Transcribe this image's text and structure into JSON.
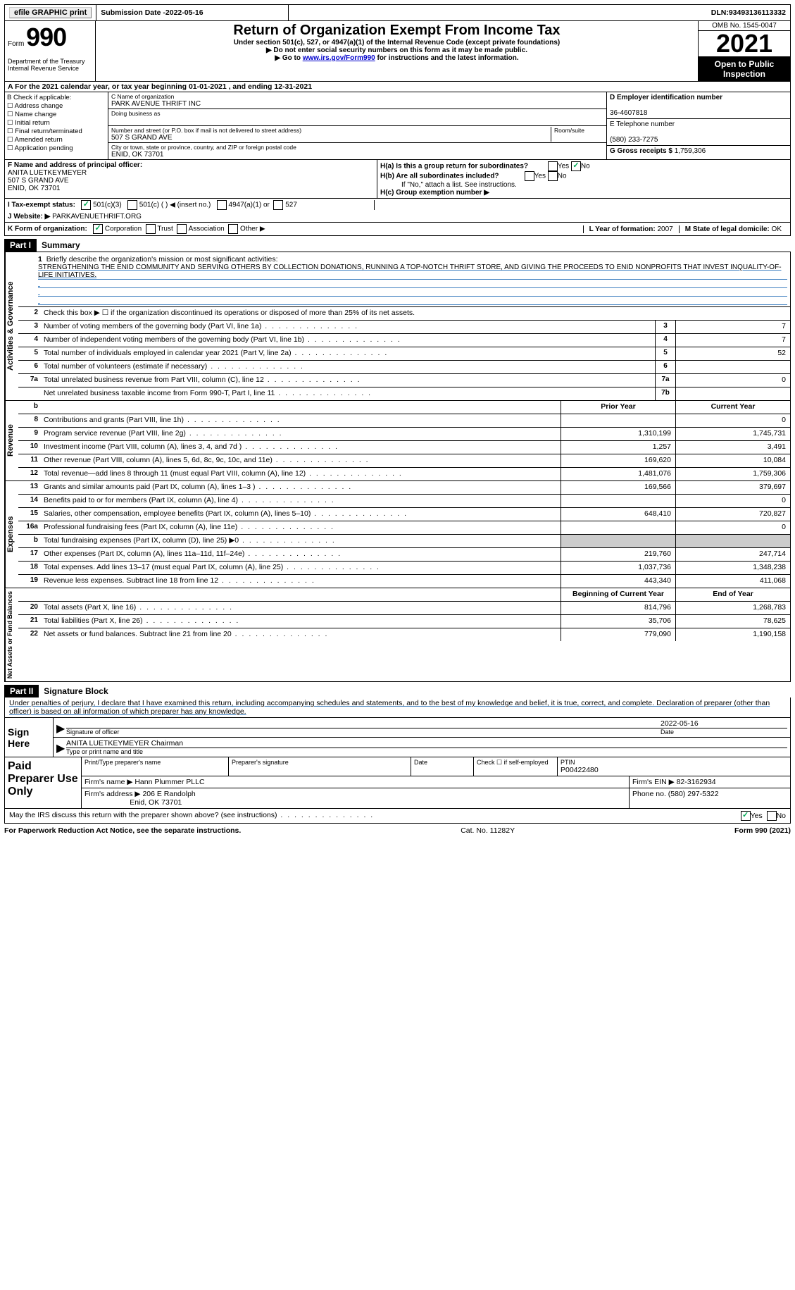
{
  "topbar": {
    "efile": "efile GRAPHIC print",
    "submission_label": "Submission Date - ",
    "submission_date": "2022-05-16",
    "dln_label": "DLN: ",
    "dln": "93493136113332"
  },
  "header": {
    "form_word": "Form",
    "form_num": "990",
    "dept": "Department of the Treasury Internal Revenue Service",
    "title": "Return of Organization Exempt From Income Tax",
    "subtitle": "Under section 501(c), 527, or 4947(a)(1) of the Internal Revenue Code (except private foundations)",
    "no_ssn": "▶ Do not enter social security numbers on this form as it may be made public.",
    "goto_pre": "▶ Go to ",
    "goto_link": "www.irs.gov/Form990",
    "goto_post": " for instructions and the latest information.",
    "omb": "OMB No. 1545-0047",
    "year": "2021",
    "open": "Open to Public Inspection"
  },
  "rowA": "A For the 2021 calendar year, or tax year beginning 01-01-2021   , and ending 12-31-2021",
  "colB": {
    "label": "B Check if applicable:",
    "address": "Address change",
    "name": "Name change",
    "initial": "Initial return",
    "final": "Final return/terminated",
    "amended": "Amended return",
    "app": "Application pending"
  },
  "colC": {
    "name_label": "C Name of organization",
    "name": "PARK AVENUE THRIFT INC",
    "dba_label": "Doing business as",
    "dba": "",
    "street_label": "Number and street (or P.O. box if mail is not delivered to street address)",
    "street": "507 S GRAND AVE",
    "room_label": "Room/suite",
    "city_label": "City or town, state or province, country, and ZIP or foreign postal code",
    "city": "ENID, OK  73701"
  },
  "colD": {
    "ein_label": "D Employer identification number",
    "ein": "36-4607818",
    "phone_label": "E Telephone number",
    "phone": "(580) 233-7275",
    "gross_label": "G Gross receipts $ ",
    "gross": "1,759,306"
  },
  "rowF": {
    "label": "F Name and address of principal officer:",
    "name": "ANITA LUETKEYMEYER",
    "addr1": "507 S GRAND AVE",
    "addr2": "ENID, OK  73701",
    "ha_label": "H(a)  Is this a group return for subordinates?",
    "hb_label": "H(b)  Are all subordinates included?",
    "hb_note": "If \"No,\" attach a list. See instructions.",
    "hc_label": "H(c)  Group exemption number ▶",
    "yes": "Yes",
    "no": "No"
  },
  "rowI": {
    "label": "I   Tax-exempt status:",
    "opt1": "501(c)(3)",
    "opt2": "501(c) (  ) ◀ (insert no.)",
    "opt3": "4947(a)(1) or",
    "opt4": "527"
  },
  "rowJ": {
    "label": "J   Website: ▶",
    "value": "PARKAVENUETHRIFT.ORG"
  },
  "rowK": {
    "label": "K Form of organization:",
    "corp": "Corporation",
    "trust": "Trust",
    "assoc": "Association",
    "other": "Other ▶",
    "l_label": "L Year of formation: ",
    "l_val": "2007",
    "m_label": "M State of legal domicile: ",
    "m_val": "OK"
  },
  "part1": {
    "header": "Part I",
    "title": "Summary"
  },
  "side_labels": {
    "activities": "Activities & Governance",
    "revenue": "Revenue",
    "expenses": "Expenses",
    "net": "Net Assets or Fund Balances"
  },
  "summary": {
    "line1_label": "Briefly describe the organization's mission or most significant activities:",
    "mission": "STRENGTHENING THE ENID COMMUNITY AND SERVING OTHERS BY COLLECTION DONATIONS, RUNNING A TOP-NOTCH THRIFT STORE, AND GIVING THE PROCEEDS TO ENID NONPROFITS THAT INVEST INQUALITY-OF-LIFE INITIATIVES.",
    "line2": "Check this box ▶ ☐  if the organization discontinued its operations or disposed of more than 25% of its net assets.",
    "lines": [
      {
        "n": "3",
        "d": "Number of voting members of the governing body (Part VI, line 1a)",
        "b": "3",
        "v": "7"
      },
      {
        "n": "4",
        "d": "Number of independent voting members of the governing body (Part VI, line 1b)",
        "b": "4",
        "v": "7"
      },
      {
        "n": "5",
        "d": "Total number of individuals employed in calendar year 2021 (Part V, line 2a)",
        "b": "5",
        "v": "52"
      },
      {
        "n": "6",
        "d": "Total number of volunteers (estimate if necessary)",
        "b": "6",
        "v": ""
      },
      {
        "n": "7a",
        "d": "Total unrelated business revenue from Part VIII, column (C), line 12",
        "b": "7a",
        "v": "0"
      },
      {
        "n": "",
        "d": "Net unrelated business taxable income from Form 990-T, Part I, line 11",
        "b": "7b",
        "v": ""
      }
    ],
    "col_prior": "Prior Year",
    "col_current": "Current Year",
    "revenue_lines": [
      {
        "n": "8",
        "d": "Contributions and grants (Part VIII, line 1h)",
        "p": "",
        "c": "0"
      },
      {
        "n": "9",
        "d": "Program service revenue (Part VIII, line 2g)",
        "p": "1,310,199",
        "c": "1,745,731"
      },
      {
        "n": "10",
        "d": "Investment income (Part VIII, column (A), lines 3, 4, and 7d )",
        "p": "1,257",
        "c": "3,491"
      },
      {
        "n": "11",
        "d": "Other revenue (Part VIII, column (A), lines 5, 6d, 8c, 9c, 10c, and 11e)",
        "p": "169,620",
        "c": "10,084"
      },
      {
        "n": "12",
        "d": "Total revenue—add lines 8 through 11 (must equal Part VIII, column (A), line 12)",
        "p": "1,481,076",
        "c": "1,759,306"
      }
    ],
    "expense_lines": [
      {
        "n": "13",
        "d": "Grants and similar amounts paid (Part IX, column (A), lines 1–3 )",
        "p": "169,566",
        "c": "379,697"
      },
      {
        "n": "14",
        "d": "Benefits paid to or for members (Part IX, column (A), line 4)",
        "p": "",
        "c": "0"
      },
      {
        "n": "15",
        "d": "Salaries, other compensation, employee benefits (Part IX, column (A), lines 5–10)",
        "p": "648,410",
        "c": "720,827"
      },
      {
        "n": "16a",
        "d": "Professional fundraising fees (Part IX, column (A), line 11e)",
        "p": "",
        "c": "0"
      },
      {
        "n": "b",
        "d": "Total fundraising expenses (Part IX, column (D), line 25) ▶0",
        "p": "shade",
        "c": "shade"
      },
      {
        "n": "17",
        "d": "Other expenses (Part IX, column (A), lines 11a–11d, 11f–24e)",
        "p": "219,760",
        "c": "247,714"
      },
      {
        "n": "18",
        "d": "Total expenses. Add lines 13–17 (must equal Part IX, column (A), line 25)",
        "p": "1,037,736",
        "c": "1,348,238"
      },
      {
        "n": "19",
        "d": "Revenue less expenses. Subtract line 18 from line 12",
        "p": "443,340",
        "c": "411,068"
      }
    ],
    "col_begin": "Beginning of Current Year",
    "col_end": "End of Year",
    "net_lines": [
      {
        "n": "20",
        "d": "Total assets (Part X, line 16)",
        "p": "814,796",
        "c": "1,268,783"
      },
      {
        "n": "21",
        "d": "Total liabilities (Part X, line 26)",
        "p": "35,706",
        "c": "78,625"
      },
      {
        "n": "22",
        "d": "Net assets or fund balances. Subtract line 21 from line 20",
        "p": "779,090",
        "c": "1,190,158"
      }
    ]
  },
  "part2": {
    "header": "Part II",
    "title": "Signature Block"
  },
  "sig": {
    "perjury": "Under penalties of perjury, I declare that I have examined this return, including accompanying schedules and statements, and to the best of my knowledge and belief, it is true, correct, and complete. Declaration of preparer (other than officer) is based on all information of which preparer has any knowledge.",
    "sign_here": "Sign Here",
    "sig_officer": "Signature of officer",
    "date_label": "Date",
    "date": "2022-05-16",
    "name_title_label": "Type or print name and title",
    "name_title": "ANITA LUETKEYMEYER  Chairman",
    "paid": "Paid Preparer Use Only",
    "print_name_label": "Print/Type preparer's name",
    "print_name": "",
    "prep_sig_label": "Preparer's signature",
    "check_label": "Check ☐ if self-employed",
    "ptin_label": "PTIN",
    "ptin": "P00422480",
    "firm_name_label": "Firm's name    ▶ ",
    "firm_name": "Hann Plummer PLLC",
    "firm_ein_label": "Firm's EIN ▶ ",
    "firm_ein": "82-3162934",
    "firm_addr_label": "Firm's address ▶ ",
    "firm_addr1": "206 E Randolph",
    "firm_addr2": "Enid, OK  73701",
    "phone_label": "Phone no. ",
    "phone": "(580) 297-5322",
    "discuss": "May the IRS discuss this return with the preparer shown above? (see instructions)",
    "yes": "Yes",
    "no": "No"
  },
  "footer": {
    "left": "For Paperwork Reduction Act Notice, see the separate instructions.",
    "mid": "Cat. No. 11282Y",
    "right": "Form 990 (2021)"
  }
}
